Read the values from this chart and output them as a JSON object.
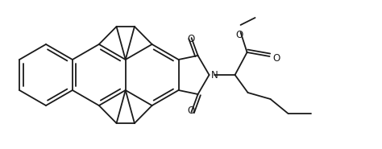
{
  "bg_color": "#ffffff",
  "line_color": "#1a1a1a",
  "line_width": 1.3,
  "figsize": [
    4.74,
    1.85
  ],
  "dpi": 100,
  "font_size": 8.5,
  "N_label": "N",
  "O_labels": [
    "O",
    "O",
    "O",
    "O"
  ]
}
